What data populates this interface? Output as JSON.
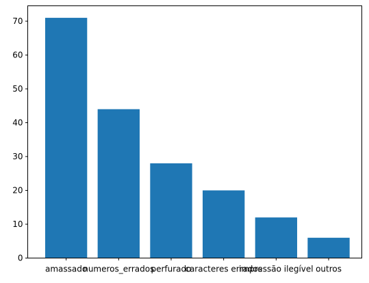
{
  "chart_data": {
    "type": "bar",
    "title": "",
    "xlabel": "",
    "ylabel": "",
    "categories": [
      "amassado",
      "numeros_errados",
      "perfurado",
      "caracteres errados",
      "impressão ilegível",
      "outros"
    ],
    "values": [
      71,
      44,
      28,
      20,
      12,
      6
    ],
    "ylim": [
      0,
      74.55
    ],
    "yticks": [
      0,
      10,
      20,
      30,
      40,
      50,
      60,
      70
    ],
    "bar_color": "#1f77b4",
    "grid": false,
    "legend": "none"
  }
}
